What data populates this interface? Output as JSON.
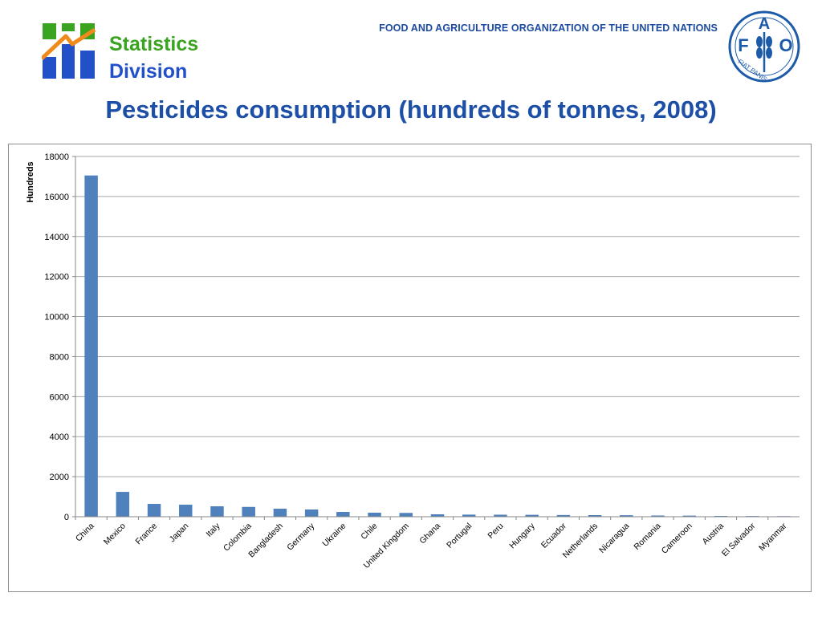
{
  "header": {
    "division_line1": "Statistics",
    "division_line2": "Division",
    "org_name": "FOOD AND AGRICULTURE ORGANIZATION OF THE UNITED NATIONS",
    "fao_logo_letters": {
      "top": "A",
      "left": "F",
      "right": "O"
    },
    "fao_motto": "FIAT PANIS",
    "brand_blue": "#1d4fa6",
    "brand_green": "#3aa320"
  },
  "slide_title": "Pesticides consumption (hundreds of tonnes, 2008)",
  "chart_data": {
    "type": "bar",
    "title": "",
    "xlabel": "",
    "ylabel": "Hundreds",
    "ylim": [
      0,
      18000
    ],
    "yticks": [
      0,
      2000,
      4000,
      6000,
      8000,
      10000,
      12000,
      14000,
      16000,
      18000
    ],
    "grid": true,
    "legend": "none",
    "bar_color": "#4f81bd",
    "categories": [
      "China",
      "Mexico",
      "France",
      "Japan",
      "Italy",
      "Colombia",
      "Bangladesh",
      "Germany",
      "Ukraine",
      "Chile",
      "United Kingdom",
      "Ghana",
      "Portugal",
      "Peru",
      "Hungary",
      "Ecuador",
      "Netherlands",
      "Nicaragua",
      "Romania",
      "Cameroon",
      "Austria",
      "El Salvador",
      "Myanmar"
    ],
    "values": [
      17050,
      1240,
      640,
      600,
      520,
      490,
      400,
      360,
      240,
      200,
      190,
      120,
      105,
      100,
      95,
      85,
      80,
      75,
      60,
      55,
      40,
      35,
      30
    ]
  }
}
